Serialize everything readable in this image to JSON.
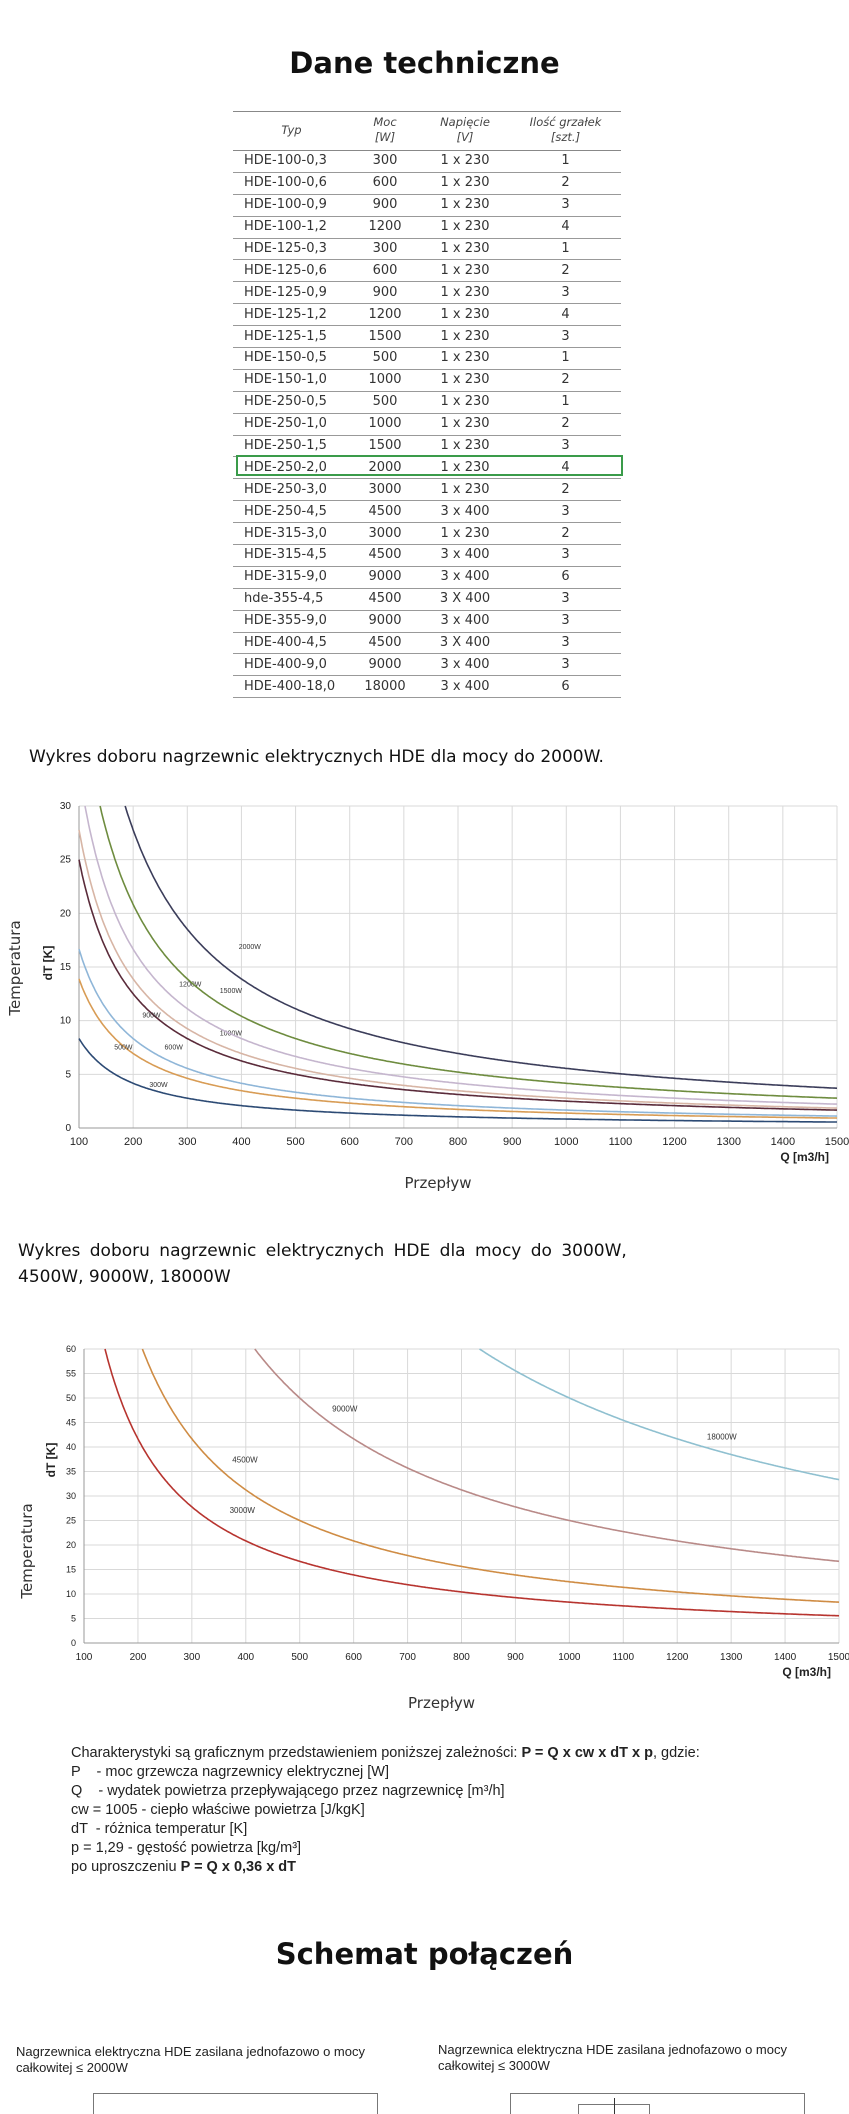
{
  "heading": "Dane techniczne",
  "table": {
    "headers": [
      {
        "l1": "Typ",
        "l2": ""
      },
      {
        "l1": "Moc",
        "l2": "[W]"
      },
      {
        "l1": "Napięcie",
        "l2": "[V]"
      },
      {
        "l1": "Ilość grzałek",
        "l2": "[szt.]"
      }
    ],
    "highlighted_row": "HDE-250-2,0",
    "rows": [
      [
        "HDE-100-0,3",
        "300",
        "1 x 230",
        "1"
      ],
      [
        "HDE-100-0,6",
        "600",
        "1 x 230",
        "2"
      ],
      [
        "HDE-100-0,9",
        "900",
        "1 x 230",
        "3"
      ],
      [
        "HDE-100-1,2",
        "1200",
        "1 x 230",
        "4"
      ],
      [
        "HDE-125-0,3",
        "300",
        "1 x 230",
        "1"
      ],
      [
        "HDE-125-0,6",
        "600",
        "1 x 230",
        "2"
      ],
      [
        "HDE-125-0,9",
        "900",
        "1 x 230",
        "3"
      ],
      [
        "HDE-125-1,2",
        "1200",
        "1 x 230",
        "4"
      ],
      [
        "HDE-125-1,5",
        "1500",
        "1 x 230",
        "3"
      ],
      [
        "HDE-150-0,5",
        "500",
        "1 x 230",
        "1"
      ],
      [
        "HDE-150-1,0",
        "1000",
        "1 x 230",
        "2"
      ],
      [
        "HDE-250-0,5",
        "500",
        "1 x 230",
        "1"
      ],
      [
        "HDE-250-1,0",
        "1000",
        "1 x 230",
        "2"
      ],
      [
        "HDE-250-1,5",
        "1500",
        "1 x 230",
        "3"
      ],
      [
        "HDE-250-2,0",
        "2000",
        "1 x 230",
        "4"
      ],
      [
        "HDE-250-3,0",
        "3000",
        "1 x 230",
        "2"
      ],
      [
        "HDE-250-4,5",
        "4500",
        "3 x 400",
        "3"
      ],
      [
        "HDE-315-3,0",
        "3000",
        "1 x 230",
        "2"
      ],
      [
        "HDE-315-4,5",
        "4500",
        "3 x 400",
        "3"
      ],
      [
        "HDE-315-9,0",
        "9000",
        "3 x 400",
        "6"
      ],
      [
        "hde-355-4,5",
        "4500",
        "3 X 400",
        "3"
      ],
      [
        "HDE-355-9,0",
        "9000",
        "3 x 400",
        "3"
      ],
      [
        "HDE-400-4,5",
        "4500",
        "3 X 400",
        "3"
      ],
      [
        "HDE-400-9,0",
        "9000",
        "3 x 400",
        "3"
      ],
      [
        "HDE-400-18,0",
        "18000",
        "3 x 400",
        "6"
      ]
    ]
  },
  "chart1_caption": "Wykres doboru nagrzewnic elektrycznych HDE dla mocy do 2000W.",
  "chart2_caption_l1": "Wykres doboru nagrzewnic elektrycznych HDE dla mocy do 3000W,",
  "chart2_caption_l2": "4500W, 9000W, 18000W",
  "chart_data": [
    {
      "type": "line",
      "ylabel_outer": "Temperatura",
      "ylabel": "dT [K]",
      "xlabel": "Przepływ",
      "xunit": "Q [m3/h]",
      "xlim": [
        100,
        1500
      ],
      "ylim": [
        0,
        30
      ],
      "xticks": [
        100,
        200,
        300,
        400,
        500,
        600,
        700,
        800,
        900,
        1000,
        1100,
        1200,
        1300,
        1400,
        1500
      ],
      "yticks": [
        0,
        5,
        10,
        15,
        20,
        25,
        30
      ],
      "grid": true,
      "formula": "dT = P / (0.36 x Q)",
      "series": [
        {
          "name": "300W",
          "power": 300,
          "color": "#2c4a74",
          "label_at": [
            230,
            3.8
          ]
        },
        {
          "name": "500W",
          "power": 500,
          "color": "#d89c55",
          "label_at": [
            165,
            7.3
          ]
        },
        {
          "name": "600W",
          "power": 600,
          "color": "#8fb6d8",
          "label_at": [
            258,
            7.3
          ]
        },
        {
          "name": "900W",
          "power": 900,
          "color": "#5a2b3a",
          "label_at": [
            217,
            10.3
          ]
        },
        {
          "name": "1000W",
          "power": 1000,
          "color": "#d7b5a5",
          "label_at": [
            360,
            8.6
          ]
        },
        {
          "name": "1200W",
          "power": 1200,
          "color": "#c5b6ce",
          "label_at": [
            285,
            13.2
          ]
        },
        {
          "name": "1500W",
          "power": 1500,
          "color": "#6e8c3f",
          "label_at": [
            360,
            12.6
          ]
        },
        {
          "name": "2000W",
          "power": 2000,
          "color": "#3b3d5a",
          "label_at": [
            395,
            16.7
          ]
        }
      ]
    },
    {
      "type": "line",
      "ylabel_outer": "Temperatura",
      "ylabel": "dT [K]",
      "xlabel": "Przepływ",
      "xunit": "Q [m3/h]",
      "xlim": [
        100,
        1500
      ],
      "ylim": [
        0,
        60
      ],
      "xticks": [
        100,
        200,
        300,
        400,
        500,
        600,
        700,
        800,
        900,
        1000,
        1100,
        1200,
        1300,
        1400,
        1500
      ],
      "yticks": [
        0,
        5,
        10,
        15,
        20,
        25,
        30,
        35,
        40,
        45,
        50,
        55,
        60
      ],
      "grid": true,
      "formula": "dT = P / (0.36 x Q)",
      "series": [
        {
          "name": "3000W",
          "power": 3000,
          "color": "#b7342f",
          "label_at": [
            370,
            26.5
          ]
        },
        {
          "name": "4500W",
          "power": 4500,
          "color": "#cf8c44",
          "label_at": [
            375,
            36.8
          ]
        },
        {
          "name": "9000W",
          "power": 9000,
          "color": "#b98a88",
          "label_at": [
            560,
            47.2
          ]
        },
        {
          "name": "18000W",
          "power": 18000,
          "color": "#8fc0d0",
          "label_at": [
            1255,
            41.5
          ]
        }
      ]
    }
  ],
  "formula_block": {
    "l1_prefix": "Charakterystyki są graficznym przedstawieniem poniższej zależności: ",
    "l1_bold": "P = Q x cw x dT x p",
    "l1_suffix": ", gdzie:",
    "l2": "P    - moc grzewcza nagrzewnicy elektrycznej [W]",
    "l3": "Q    - wydatek powietrza przepływającego przez nagrzewnicę [m³/h]",
    "l4": "cw = 1005 - ciepło właściwe powietrza [J/kgK]",
    "l5": "dT  - różnica temperatur [K]",
    "l6": "p = 1,29 - gęstość powietrza [kg/m³]",
    "l7_prefix": "po uproszczeniu ",
    "l7_bold": "P = Q x 0,36 x dT"
  },
  "schema_heading": "Schemat połączeń",
  "schema": {
    "left_l1": "Nagrzewnica elektryczna HDE zasilana jednofazowo o mocy",
    "left_l2": "całkowitej ≤ 2000W",
    "right_l1": "Nagrzewnica elektryczna HDE zasilana jednofazowo o mocy",
    "right_l2": "całkowitej ≤ 3000W"
  }
}
